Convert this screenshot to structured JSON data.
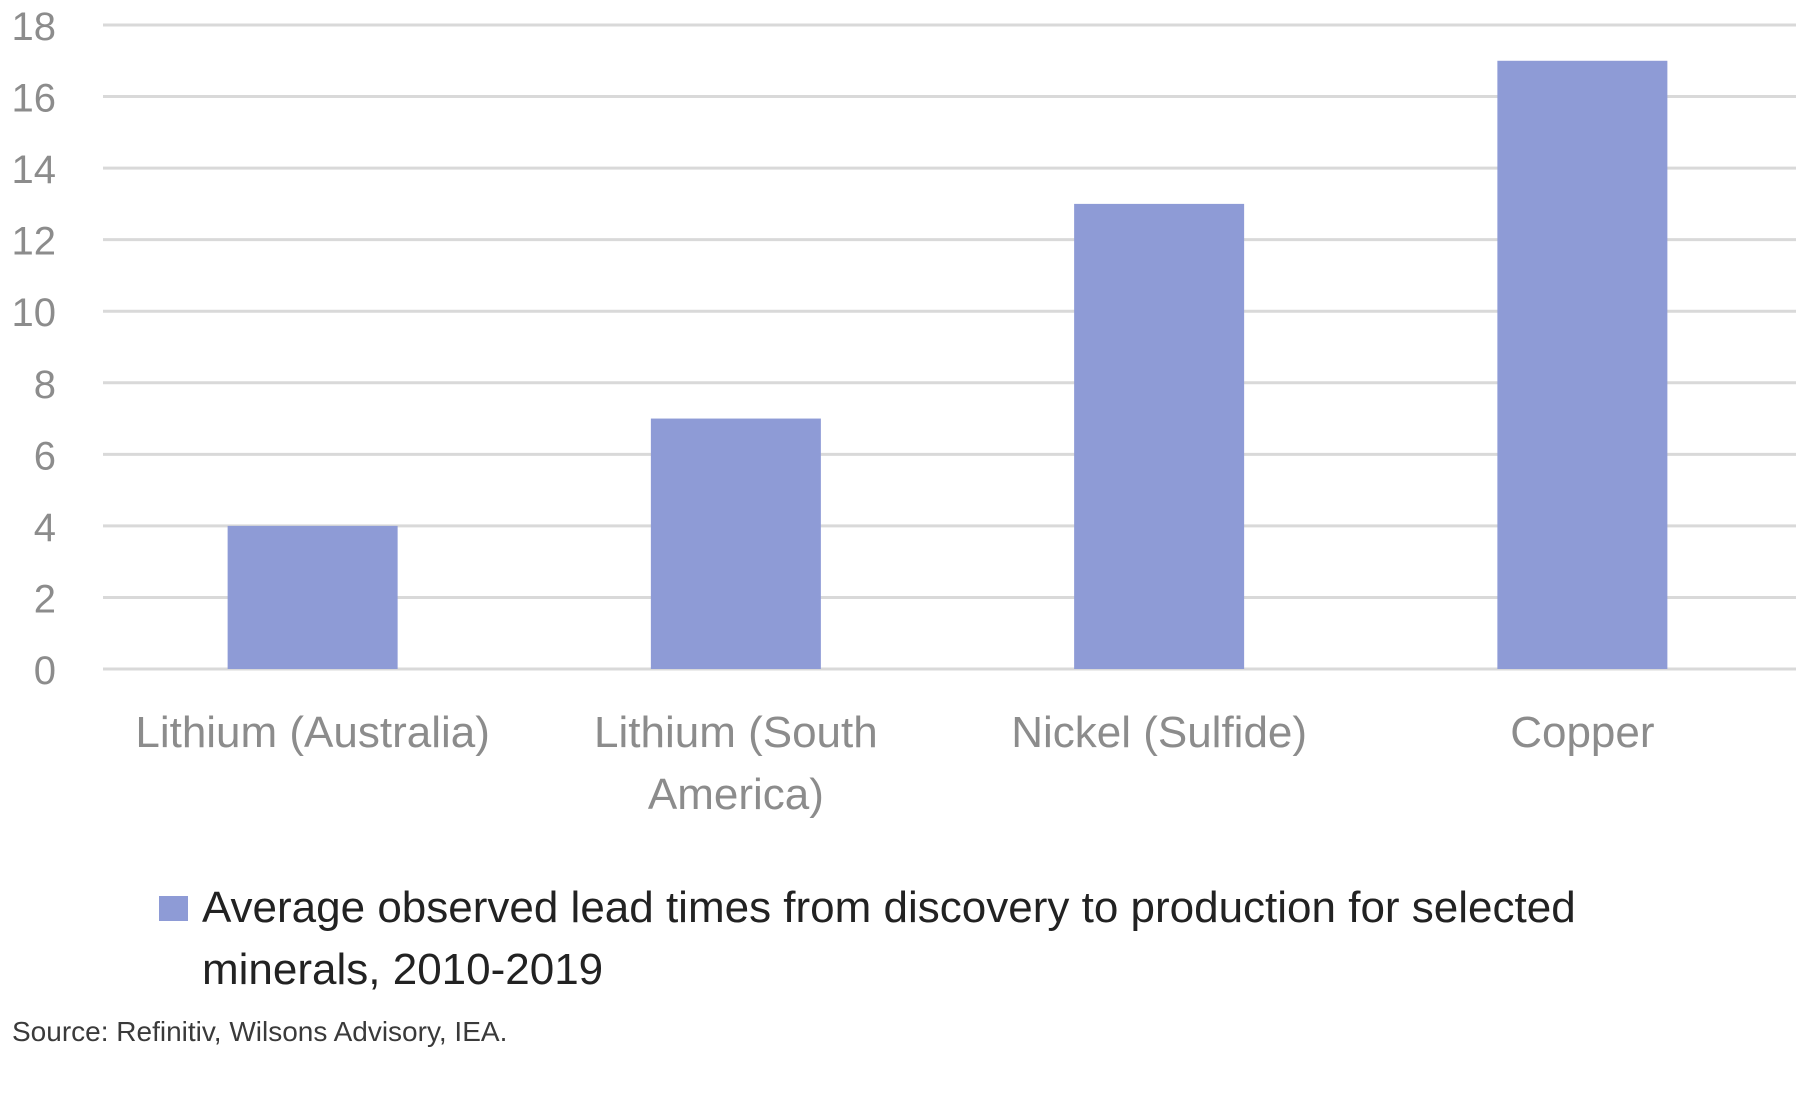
{
  "chart_data": {
    "type": "bar",
    "title": "",
    "xlabel": "",
    "ylabel": "",
    "categories": [
      [
        "Lithium (Australia)"
      ],
      [
        "Lithium (South",
        "America)"
      ],
      [
        "Nickel (Sulfide)"
      ],
      [
        "Copper"
      ]
    ],
    "series": [
      {
        "name": "Average observed lead times from discovery to production for selected minerals, 2010-2019",
        "values": [
          4,
          7,
          13,
          17
        ],
        "color": "#8e9bd6"
      }
    ],
    "legend_lines": [
      "Average observed lead times from discovery to production for selected",
      "minerals, 2010-2019"
    ],
    "ylim": [
      0,
      18
    ],
    "yticks": [
      0,
      2,
      4,
      6,
      8,
      10,
      12,
      14,
      16,
      18
    ],
    "grid": true,
    "legend_position": "bottom",
    "grid_color": "#d9d9d9",
    "axis_text_color": "#8c8c8c",
    "legend_text_color": "#222222"
  },
  "source": "Source: Refinitiv, Wilsons Advisory, IEA."
}
